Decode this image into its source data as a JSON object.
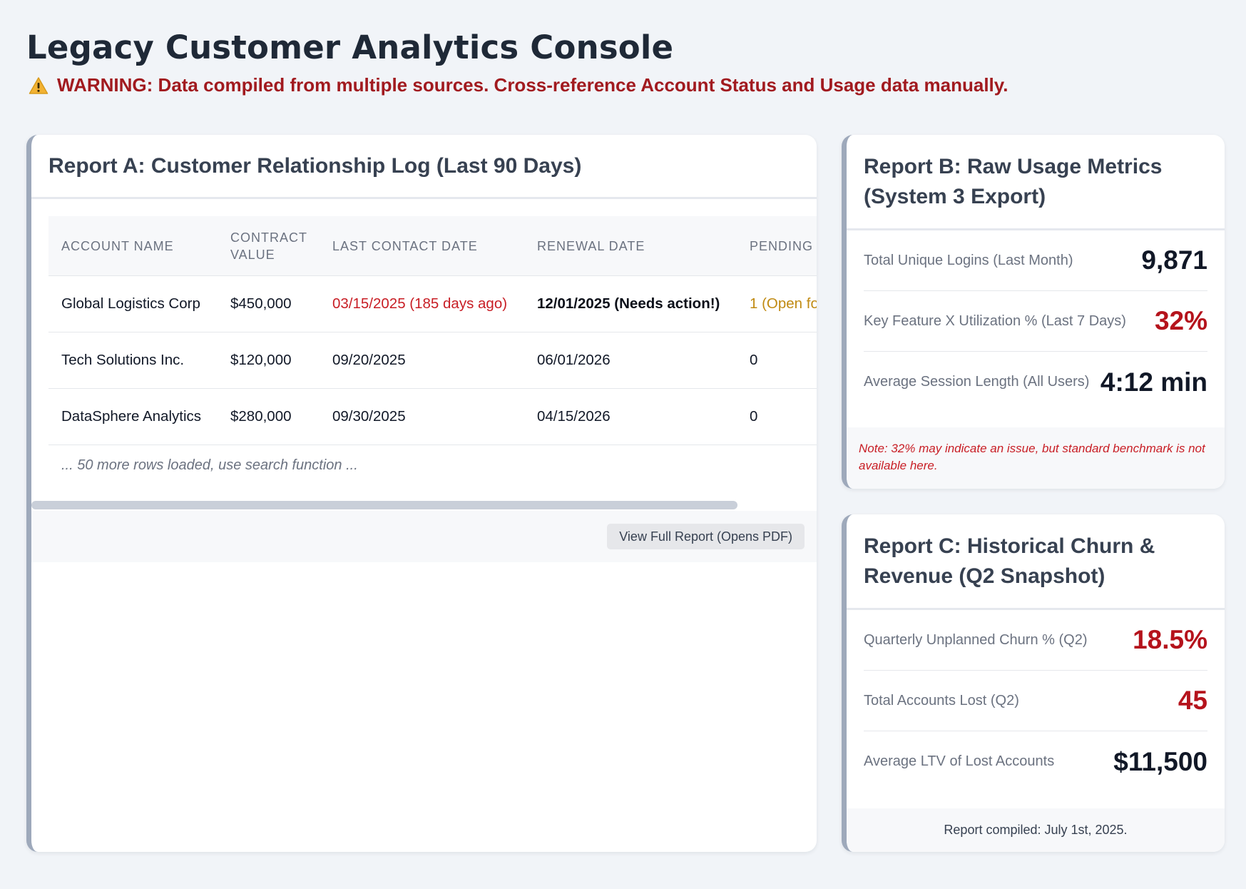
{
  "page": {
    "title": "Legacy Customer Analytics Console",
    "warning": "WARNING: Data compiled from multiple sources. Cross-reference Account Status and Usage data manually.",
    "warning_icon": "warning-triangle-icon"
  },
  "report_a": {
    "title": "Report A: Customer Relationship Log (Last 90 Days)",
    "columns": [
      "ACCOUNT NAME",
      "CONTRACT VALUE",
      "LAST CONTACT DATE",
      "RENEWAL DATE",
      "PENDING"
    ],
    "rows": [
      [
        "Global Logistics Corp",
        "$450,000",
        "03/15/2025 (185 days ago)",
        "12/01/2025 (Needs action!)",
        "1 (Open fo"
      ],
      [
        "Tech Solutions Inc.",
        "$120,000",
        "09/20/2025",
        "06/01/2026",
        "0"
      ],
      [
        "DataSphere Analytics",
        "$280,000",
        "09/30/2025",
        "04/15/2026",
        "0"
      ]
    ],
    "more_rows": "... 50 more rows loaded, use search function ...",
    "button": "View Full Report (Opens PDF)"
  },
  "report_b": {
    "title": "Report B: Raw Usage Metrics (System 3 Export)",
    "metrics": [
      {
        "label": "Total Unique Logins (Last Month)",
        "value": "9,871"
      },
      {
        "label": "Key Feature X Utilization % (Last 7 Days)",
        "value": "32%"
      },
      {
        "label": "Average Session Length (All Users)",
        "value": "4:12 min"
      }
    ],
    "note": "Note: 32% may indicate an issue, but standard benchmark is not available here."
  },
  "report_c": {
    "title": "Report C: Historical Churn & Revenue (Q2 Snapshot)",
    "metrics": [
      {
        "label": "Quarterly Unplanned Churn % (Q2)",
        "value": "18.5%"
      },
      {
        "label": "Total Accounts Lost (Q2)",
        "value": "45"
      },
      {
        "label": "Average LTV of Lost Accounts",
        "value": "$11,500"
      }
    ],
    "footer": "Report compiled: July 1st, 2025."
  },
  "colors": {
    "background": "#f1f4f8",
    "warning_red": "#a11a1f",
    "alert_red": "#c81e25",
    "amber": "#c08a12",
    "card_accent": "#9ea9bb"
  }
}
